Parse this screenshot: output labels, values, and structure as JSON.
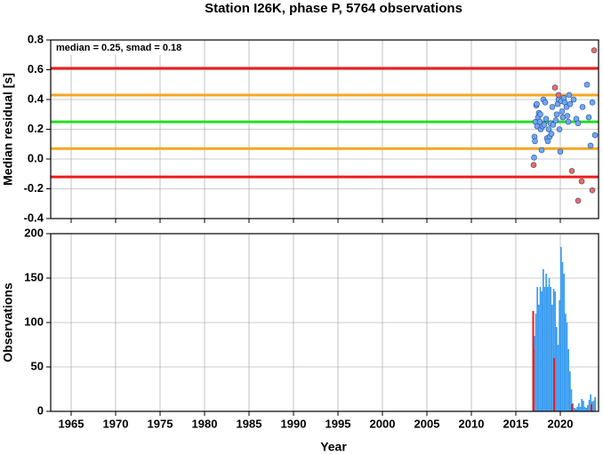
{
  "chart_data": [
    {
      "type": "scatter",
      "title": "Station I26K, phase P, 5764 observations",
      "ylabel": "Median residual [s]",
      "annotation": "median = 0.25, smad = 0.18",
      "xlim": [
        1962.7,
        2024.3
      ],
      "xticks": [
        1965,
        1970,
        1975,
        1980,
        1985,
        1990,
        1995,
        2000,
        2005,
        2010,
        2015,
        2020
      ],
      "ylim": [
        -0.4,
        0.8
      ],
      "yticks": [
        -0.4,
        -0.2,
        {
          "value": 0,
          "label": "0.0"
        },
        0.2,
        0.4,
        0.6,
        0.8
      ],
      "grid": true,
      "hlines": [
        {
          "value": 0.61,
          "color": "#ee1c1c"
        },
        {
          "value": 0.43,
          "color": "#f5a623"
        },
        {
          "value": 0.25,
          "color": "#22dd22"
        },
        {
          "value": 0.07,
          "color": "#f5a623"
        },
        {
          "value": -0.12,
          "color": "#ee1c1c"
        }
      ],
      "series": [
        {
          "color": "#6fa8f5",
          "x": [
            2017.05,
            2017.1,
            2017.15,
            2017.2,
            2017.3,
            2017.35,
            2017.4,
            2017.5,
            2017.6,
            2017.7,
            2017.75,
            2017.8,
            2017.9,
            2018.0,
            2018.1,
            2018.2,
            2018.3,
            2018.4,
            2018.5,
            2018.6,
            2018.7,
            2018.8,
            2018.9,
            2019.0,
            2019.1,
            2019.2,
            2019.5,
            2019.6,
            2019.7,
            2019.8,
            2019.9,
            2020.0,
            2020.1,
            2020.2,
            2020.3,
            2020.4,
            2020.5,
            2020.7,
            2020.8,
            2020.9,
            2021.0,
            2021.1,
            2021.5,
            2021.8,
            2022.0,
            2022.5,
            2023.0,
            2023.2,
            2023.4,
            2023.6,
            2023.9
          ],
          "values": [
            0.01,
            0.15,
            0.12,
            0.25,
            0.36,
            0.37,
            0.22,
            0.28,
            0.31,
            0.25,
            0.3,
            0.2,
            0.06,
            0.22,
            0.4,
            0.23,
            0.38,
            0.27,
            0.14,
            0.12,
            0.2,
            0.15,
            0.24,
            0.17,
            0.35,
            0.23,
            0.26,
            0.3,
            0.37,
            0.4,
            0.2,
            0.05,
            0.39,
            0.32,
            0.28,
            0.41,
            0.38,
            0.35,
            0.29,
            0.25,
            0.43,
            0.37,
            0.4,
            0.27,
            0.24,
            0.35,
            0.5,
            0.28,
            0.09,
            0.38,
            0.16
          ]
        },
        {
          "color": "#f26b5b",
          "x": [
            2017.0,
            2019.4,
            2019.8,
            2021.3,
            2022.0,
            2022.4,
            2023.6,
            2023.8
          ],
          "values": [
            -0.04,
            0.48,
            0.43,
            -0.08,
            -0.28,
            -0.15,
            -0.21,
            0.73
          ]
        }
      ]
    },
    {
      "type": "histogram",
      "ylabel": "Observations",
      "xlabel": "Year",
      "xlim": [
        1962.7,
        2024.3
      ],
      "xticks": [
        1965,
        1970,
        1975,
        1980,
        1985,
        1990,
        1995,
        2000,
        2005,
        2010,
        2015,
        2020
      ],
      "ylim": [
        0,
        200
      ],
      "yticks": [
        0,
        50,
        100,
        150,
        200
      ],
      "grid": true,
      "color": "#3b9df0",
      "bins": [
        2017,
        2017.17,
        2017.33,
        2017.5,
        2017.67,
        2017.83,
        2018,
        2018.17,
        2018.33,
        2018.5,
        2018.67,
        2018.83,
        2019,
        2019.17,
        2019.33,
        2019.5,
        2019.67,
        2019.83,
        2020,
        2020.17,
        2020.33,
        2020.5,
        2020.67,
        2020.83,
        2021,
        2021.17,
        2021.33,
        2021.5,
        2021.67,
        2021.83,
        2022,
        2022.17,
        2022.33,
        2022.5,
        2022.67,
        2022.83,
        2023,
        2023.17,
        2023.33,
        2023.5,
        2023.67,
        2023.83,
        2024
      ],
      "values": [
        85,
        110,
        140,
        120,
        140,
        135,
        160,
        140,
        155,
        140,
        150,
        140,
        120,
        138,
        135,
        95,
        75,
        125,
        185,
        168,
        155,
        110,
        100,
        70,
        45,
        25,
        9,
        4,
        3,
        5,
        9,
        5,
        14,
        12,
        5,
        4,
        7,
        13,
        19,
        11,
        12,
        16
      ],
      "series": [
        {
          "color": "#ee1c1c",
          "x": [
            2016.95,
            2017.0,
            2019.3,
            2021.3,
            2023.5
          ],
          "values": [
            113,
            70,
            60,
            8,
            8
          ]
        }
      ]
    }
  ]
}
